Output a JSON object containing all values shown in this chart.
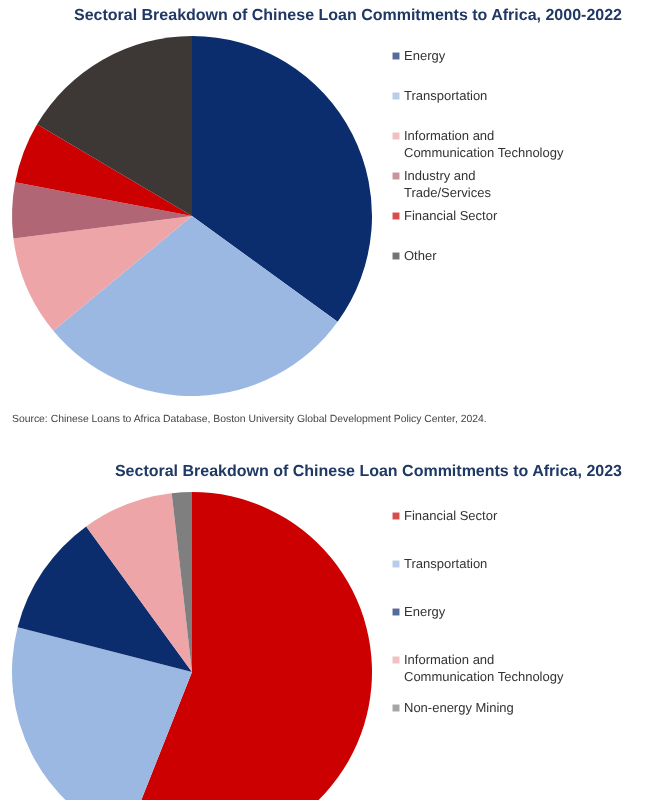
{
  "chart_data": [
    {
      "type": "pie",
      "title": "Sectoral Breakdown of Chinese Loan Commitments to Africa, 2000-2022",
      "categories": [
        "Energy",
        "Transportation",
        "Information and Communication Technology",
        "Industry and Trade/Services",
        "Financial Sector",
        "Other"
      ],
      "values": [
        35,
        29,
        9,
        5,
        5.5,
        16.5
      ],
      "colors": [
        "#0b2d6e",
        "#9bb8e3",
        "#eea5a8",
        "#b06675",
        "#cc0000",
        "#3d3735"
      ],
      "legend": "right",
      "annotations": [
        "Source: Chinese Loans to Africa Database, Boston University Global Development Policy Center, 2024."
      ]
    },
    {
      "type": "pie",
      "title": "Sectoral Breakdown of Chinese Loan Commitments to Africa, 2023",
      "categories": [
        "Financial Sector",
        "Transportation",
        "Energy",
        "Information and Communication Technology",
        "Non-energy Mining"
      ],
      "values": [
        56,
        23,
        11,
        8.2,
        1.8
      ],
      "colors": [
        "#cc0000",
        "#9bb8e3",
        "#0b2d6e",
        "#eea5a8",
        "#7f7f7f"
      ],
      "legend": "right"
    }
  ]
}
